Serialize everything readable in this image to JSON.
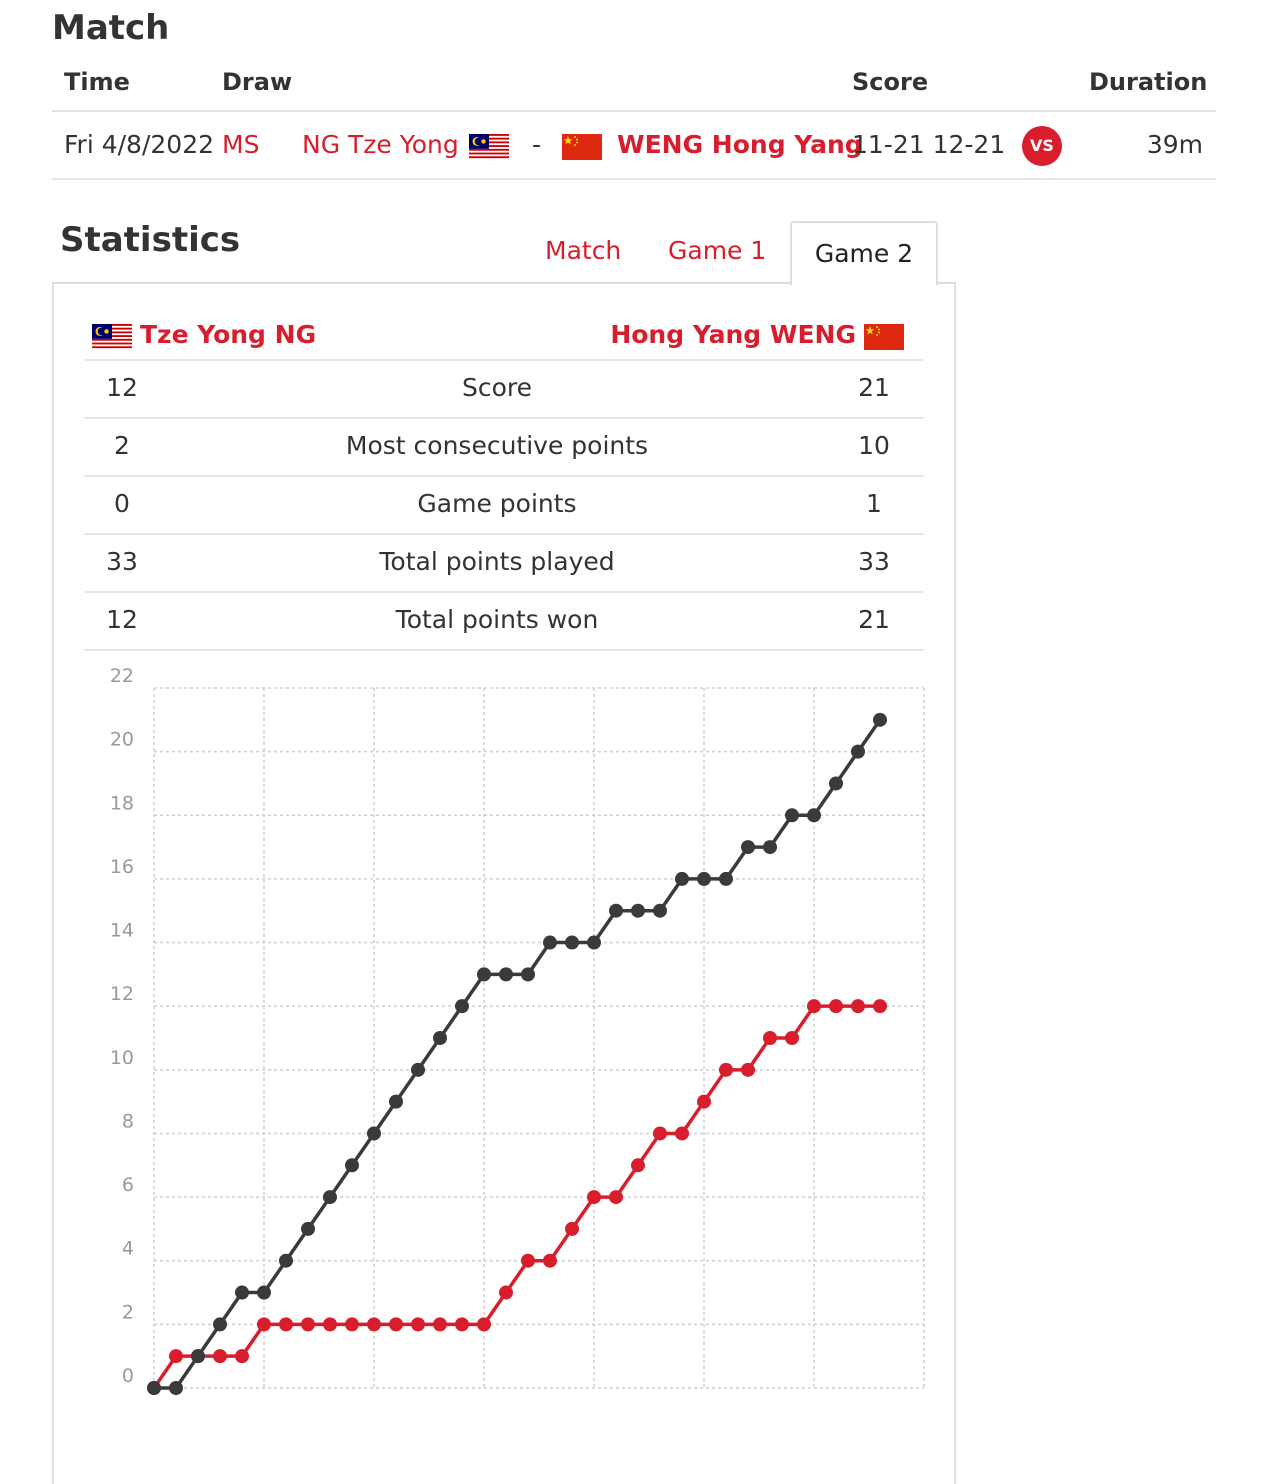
{
  "match": {
    "title": "Match",
    "headers": {
      "time": "Time",
      "draw": "Draw",
      "score": "Score",
      "duration": "Duration"
    },
    "row": {
      "time": "Fri 4/8/2022",
      "draw": "MS",
      "player1": "NG Tze Yong",
      "player1_flag": "flag-malaysia",
      "separator": "-",
      "player2": "WENG Hong Yang",
      "player2_flag": "flag-china",
      "score": "11-21 12-21",
      "vs_label": "VS",
      "duration": "39m"
    }
  },
  "statistics": {
    "title": "Statistics",
    "tabs": [
      "Match",
      "Game 1",
      "Game 2"
    ],
    "active_tab": "Game 2",
    "player_left": "Tze Yong NG",
    "player_right": "Hong Yang WENG",
    "rows": [
      {
        "left": "12",
        "label": "Score",
        "right": "21"
      },
      {
        "left": "2",
        "label": "Most consecutive points",
        "right": "10"
      },
      {
        "left": "0",
        "label": "Game points",
        "right": "1"
      },
      {
        "left": "33",
        "label": "Total points played",
        "right": "33"
      },
      {
        "left": "12",
        "label": "Total points won",
        "right": "21"
      }
    ]
  },
  "colors": {
    "accent_red": "#d81e2c",
    "dark_series": "#3a3a3a"
  },
  "chart_data": {
    "type": "line",
    "title": "",
    "xlabel": "",
    "ylabel": "",
    "ylim": [
      0,
      22
    ],
    "xlim": [
      0,
      35
    ],
    "yticks": [
      0,
      2,
      4,
      6,
      8,
      10,
      12,
      14,
      16,
      18,
      20,
      22
    ],
    "grid": true,
    "series": [
      {
        "color": "#d81e2c",
        "values": [
          0,
          1,
          1,
          1,
          1,
          2,
          2,
          2,
          2,
          2,
          2,
          2,
          2,
          2,
          2,
          2,
          3,
          4,
          4,
          5,
          6,
          6,
          7,
          8,
          8,
          9,
          10,
          10,
          11,
          11,
          12,
          12,
          12,
          12
        ]
      },
      {
        "color": "#3a3a3a",
        "values": [
          0,
          0,
          1,
          2,
          3,
          3,
          4,
          5,
          6,
          7,
          8,
          9,
          10,
          11,
          12,
          13,
          13,
          13,
          14,
          14,
          14,
          15,
          15,
          15,
          16,
          16,
          16,
          17,
          17,
          18,
          18,
          19,
          20,
          21
        ]
      }
    ]
  }
}
